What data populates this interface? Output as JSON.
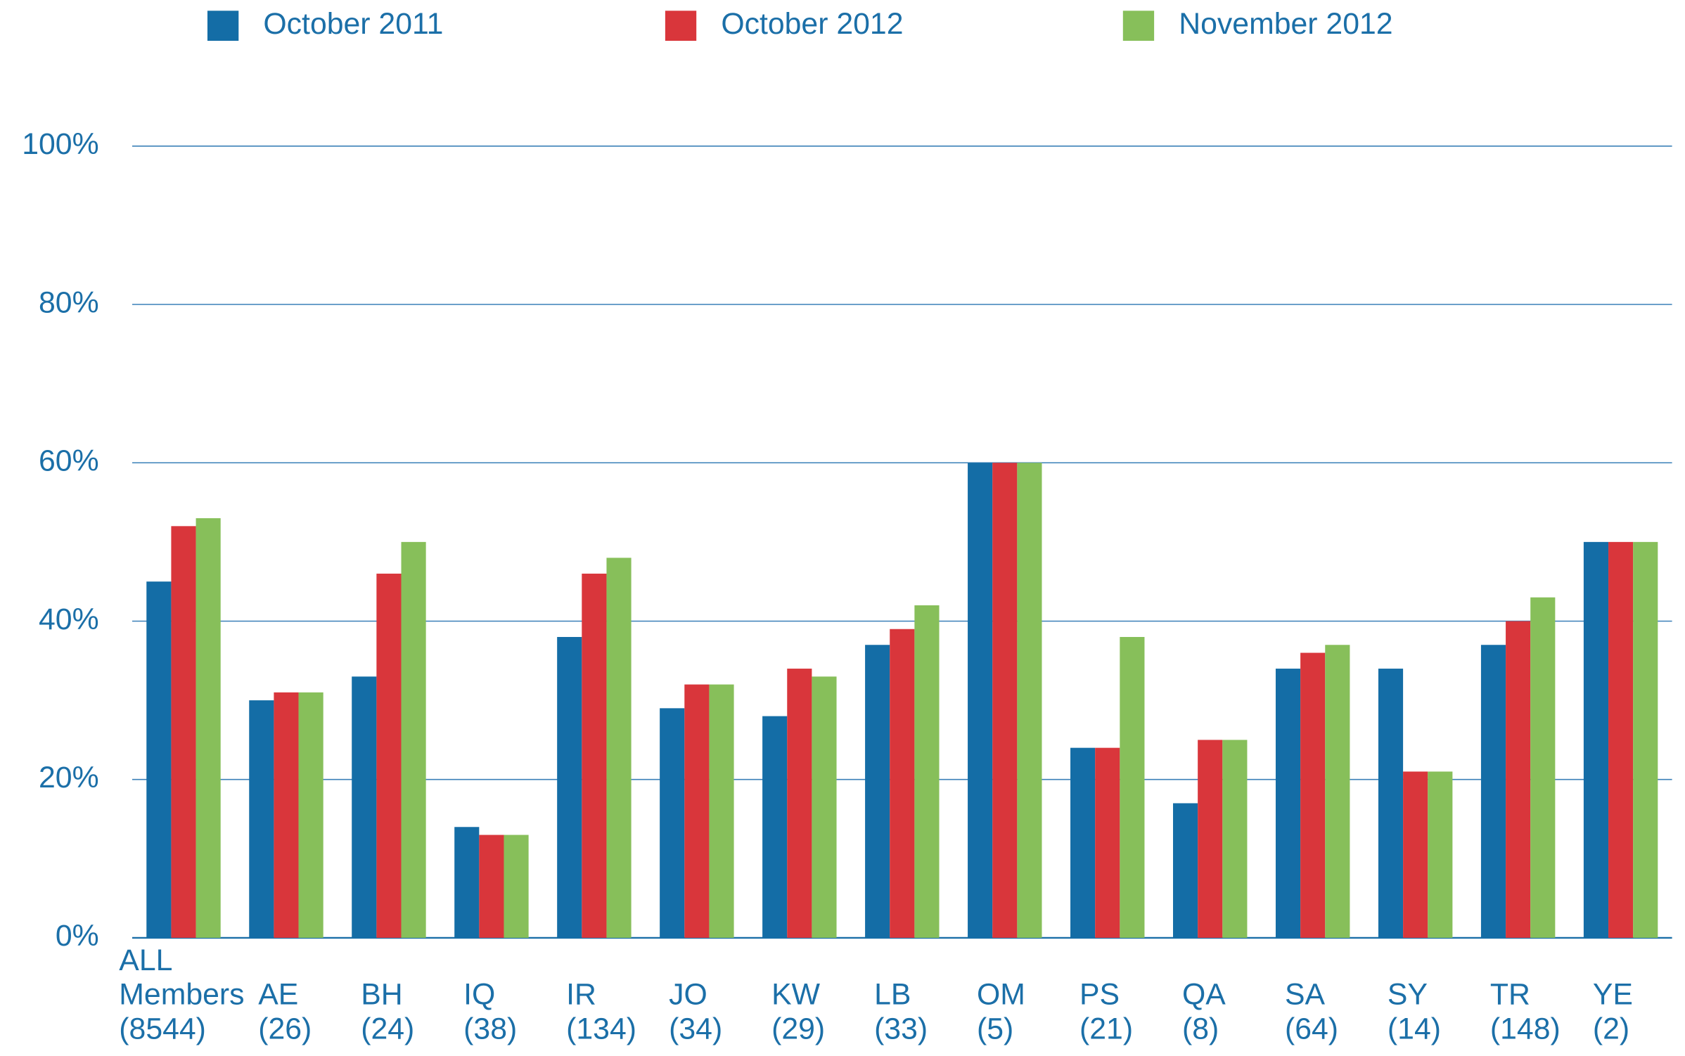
{
  "chart_data": {
    "type": "bar",
    "categories": [
      [
        "ALL",
        "Members",
        "(8544)"
      ],
      [
        "AE",
        "(26)"
      ],
      [
        "BH",
        "(24)"
      ],
      [
        "IQ",
        "(38)"
      ],
      [
        "IR",
        "(134)"
      ],
      [
        "JO",
        "(34)"
      ],
      [
        "KW",
        "(29)"
      ],
      [
        "LB",
        "(33)"
      ],
      [
        "OM",
        "(5)"
      ],
      [
        "PS",
        "(21)"
      ],
      [
        "QA",
        "(8)"
      ],
      [
        "SA",
        "(64)"
      ],
      [
        "SY",
        "(14)"
      ],
      [
        "TR",
        "(148)"
      ],
      [
        "YE",
        "(2)"
      ]
    ],
    "series": [
      {
        "name": "October 2011",
        "color": "#146da6",
        "values": [
          45,
          30,
          33,
          14,
          38,
          29,
          28,
          37,
          60,
          24,
          17,
          34,
          34,
          37,
          50
        ]
      },
      {
        "name": "October 2012",
        "color": "#d9363b",
        "values": [
          52,
          31,
          46,
          13,
          46,
          32,
          34,
          39,
          60,
          24,
          25,
          36,
          21,
          40,
          50
        ]
      },
      {
        "name": "November 2012",
        "color": "#87bf5a",
        "values": [
          53,
          31,
          50,
          13,
          48,
          32,
          33,
          42,
          60,
          38,
          25,
          37,
          21,
          43,
          50
        ]
      }
    ],
    "ylim": [
      0,
      100
    ],
    "yticks": [
      {
        "value": 0,
        "label": "0%"
      },
      {
        "value": 20,
        "label": "20%"
      },
      {
        "value": 40,
        "label": "40%"
      },
      {
        "value": 60,
        "label": "60%"
      },
      {
        "value": 80,
        "label": "80%"
      },
      {
        "value": 100,
        "label": "100%"
      }
    ],
    "grid": true,
    "legend": "top"
  }
}
